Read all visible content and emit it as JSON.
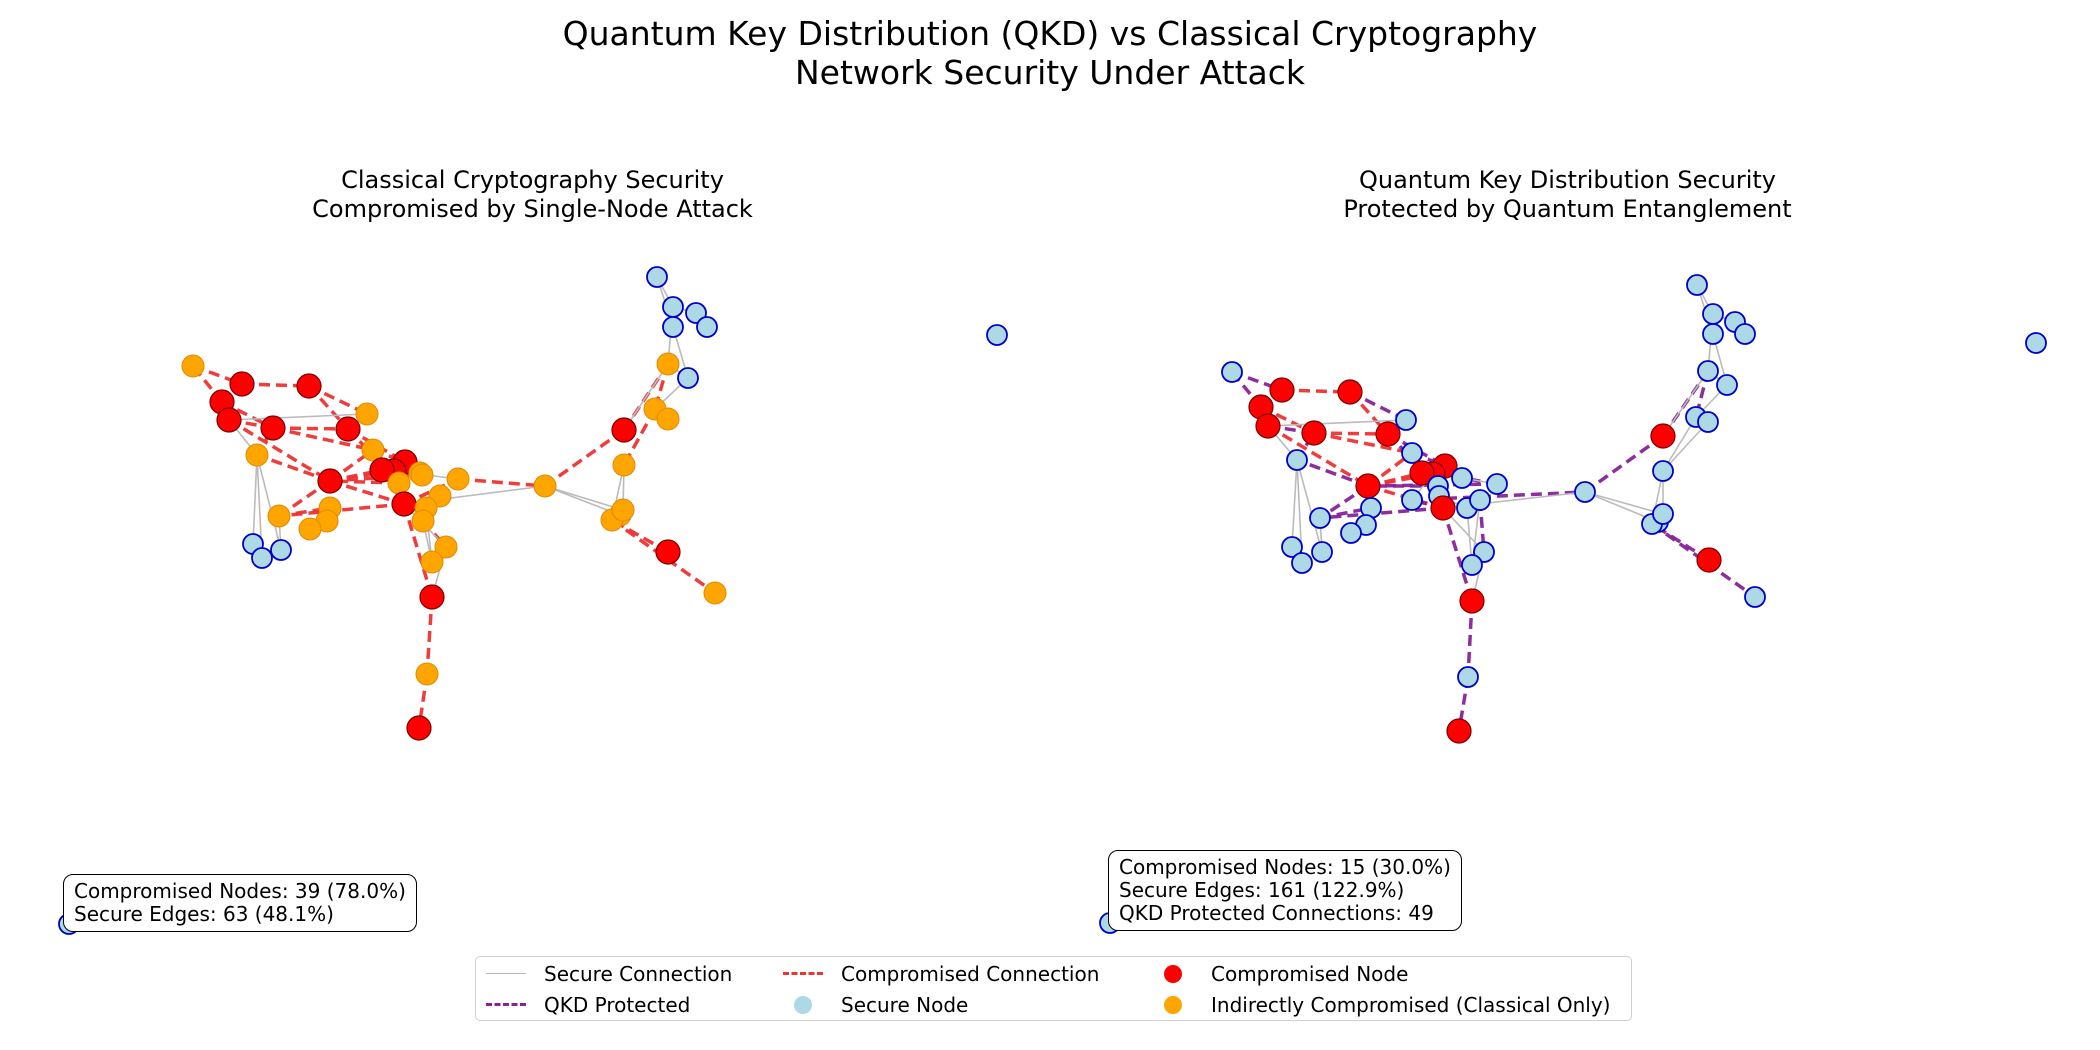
{
  "figure": {
    "title_line1": "Quantum Key Distribution (QKD) vs Classical Cryptography",
    "title_line2": "Network Security Under Attack"
  },
  "panels": {
    "classical": {
      "title_line1": "Classical Cryptography Security",
      "title_line2": "Compromised by Single-Node Attack",
      "stats": [
        "Compromised Nodes: 39 (78.0%)",
        "Secure Edges: 63 (48.1%)"
      ]
    },
    "qkd": {
      "title_line1": "Quantum Key Distribution Security",
      "title_line2": "Protected by Quantum Entanglement",
      "stats": [
        "Compromised Nodes: 15 (30.0%)",
        "Secure Edges: 161 (122.9%)",
        "QKD Protected Connections: 49"
      ]
    }
  },
  "legend": {
    "secure_connection": "Secure Connection",
    "qkd_protected": "QKD Protected",
    "compromised_connection": "Compromised Connection",
    "secure_node": "Secure Node",
    "compromised_node": "Compromised Node",
    "indirectly_compromised": "Indirectly Compromised (Classical Only)"
  },
  "colors": {
    "compromised_node": "#ff0000",
    "indirect_node": "#ffa500",
    "secure_node_fill": "#add8e6",
    "secure_node_edge": "#0000cc",
    "secure_edge": "#bbbbbb",
    "compromised_edge": "#ee3333",
    "qkd_edge": "#882299"
  }
}
